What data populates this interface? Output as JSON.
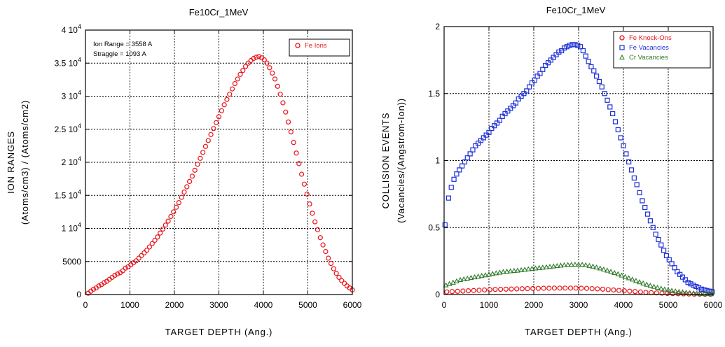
{
  "chart_data": [
    {
      "type": "scatter",
      "title": "Fe10Cr_1MeV",
      "xlabel": "TARGET DEPTH (Ang.)",
      "ylabel": [
        "ION RANGES",
        "(Atoms/cm3) / (Atoms/cm2)"
      ],
      "xlim": [
        0,
        6000
      ],
      "ylim": [
        0,
        40000
      ],
      "x_ticks": [
        0,
        1000,
        2000,
        3000,
        4000,
        5000,
        6000
      ],
      "y_ticks": [
        0,
        5000,
        10000,
        15000,
        20000,
        25000,
        30000,
        35000,
        40000
      ],
      "y_tick_labels": [
        {
          "base": "0",
          "exp": ""
        },
        {
          "base": "5000",
          "exp": ""
        },
        {
          "base": "1 10",
          "exp": "4"
        },
        {
          "base": "1.5 10",
          "exp": "4"
        },
        {
          "base": "2 10",
          "exp": "4"
        },
        {
          "base": "2.5 10",
          "exp": "4"
        },
        {
          "base": "3 10",
          "exp": "4"
        },
        {
          "base": "3.5 10",
          "exp": "4"
        },
        {
          "base": "4 10",
          "exp": "4"
        }
      ],
      "grid": true,
      "annotations": [
        "Ion Range = 3558 A",
        "Straggle = 1093 A"
      ],
      "legend_position": "top-right",
      "series": [
        {
          "name": "Fe Ions",
          "color": "#e8141b",
          "marker": "circle",
          "x": [
            60,
            120,
            180,
            240,
            300,
            360,
            420,
            480,
            540,
            600,
            660,
            720,
            780,
            840,
            900,
            960,
            1020,
            1080,
            1140,
            1200,
            1260,
            1320,
            1380,
            1440,
            1500,
            1560,
            1620,
            1680,
            1740,
            1800,
            1860,
            1920,
            1980,
            2040,
            2100,
            2160,
            2220,
            2280,
            2340,
            2400,
            2460,
            2520,
            2580,
            2640,
            2700,
            2760,
            2820,
            2880,
            2940,
            3000,
            3060,
            3120,
            3180,
            3240,
            3300,
            3360,
            3420,
            3480,
            3540,
            3600,
            3660,
            3720,
            3780,
            3840,
            3900,
            3960,
            4020,
            4080,
            4140,
            4200,
            4260,
            4320,
            4380,
            4440,
            4500,
            4560,
            4620,
            4680,
            4740,
            4800,
            4860,
            4920,
            4980,
            5040,
            5100,
            5160,
            5220,
            5280,
            5340,
            5400,
            5460,
            5520,
            5580,
            5640,
            5700,
            5760,
            5820,
            5880,
            5940,
            6000
          ],
          "y": [
            200,
            500,
            800,
            1000,
            1300,
            1500,
            1800,
            2000,
            2300,
            2600,
            2900,
            3100,
            3300,
            3600,
            4000,
            4200,
            4500,
            4800,
            5100,
            5500,
            5900,
            6300,
            6700,
            7200,
            7700,
            8200,
            8700,
            9300,
            9900,
            10500,
            11100,
            11800,
            12500,
            13200,
            13900,
            14700,
            15500,
            16300,
            17100,
            17900,
            18800,
            19700,
            20600,
            21500,
            22400,
            23300,
            24200,
            25100,
            26000,
            26900,
            27800,
            28700,
            29500,
            30300,
            31100,
            31900,
            32600,
            33300,
            33900,
            34500,
            35000,
            35400,
            35700,
            35900,
            36000,
            35800,
            35500,
            35000,
            34300,
            33500,
            32600,
            31500,
            30300,
            29000,
            27600,
            26100,
            24600,
            23000,
            21400,
            19800,
            18200,
            16700,
            15200,
            13700,
            12300,
            11000,
            9800,
            8600,
            7500,
            6500,
            5500,
            4700,
            3900,
            3200,
            2600,
            2100,
            1700,
            1300,
            1000,
            700
          ]
        }
      ]
    },
    {
      "type": "scatter",
      "title": "Fe10Cr_1MeV",
      "xlabel": "TARGET DEPTH (Ang.)",
      "ylabel": [
        "COLLISION EVENTS",
        "(Vacancies/(Angstrom-Ion))"
      ],
      "xlim": [
        0,
        6000
      ],
      "ylim": [
        0,
        2
      ],
      "x_ticks": [
        0,
        1000,
        2000,
        3000,
        4000,
        5000,
        6000
      ],
      "y_ticks": [
        0,
        0.5,
        1,
        1.5,
        2
      ],
      "y_tick_labels": [
        {
          "base": "0",
          "exp": ""
        },
        {
          "base": "0.5",
          "exp": ""
        },
        {
          "base": "1",
          "exp": ""
        },
        {
          "base": "1.5",
          "exp": ""
        },
        {
          "base": "2",
          "exp": ""
        }
      ],
      "grid": true,
      "legend_position": "top-right",
      "series": [
        {
          "name": "Fe Knock-Ons",
          "color": "#e8141b",
          "marker": "circle",
          "x": [
            60,
            180,
            300,
            420,
            540,
            660,
            780,
            900,
            1020,
            1140,
            1260,
            1380,
            1500,
            1620,
            1740,
            1860,
            1980,
            2100,
            2220,
            2340,
            2460,
            2580,
            2700,
            2820,
            2940,
            3060,
            3180,
            3300,
            3420,
            3540,
            3660,
            3780,
            3900,
            4020,
            4140,
            4260,
            4380,
            4500,
            4620,
            4740,
            4860,
            4980,
            5100,
            5220,
            5340,
            5460,
            5580,
            5700,
            5820,
            5940
          ],
          "y": [
            0.02,
            0.022,
            0.024,
            0.026,
            0.028,
            0.03,
            0.032,
            0.034,
            0.036,
            0.038,
            0.039,
            0.04,
            0.041,
            0.042,
            0.043,
            0.044,
            0.045,
            0.046,
            0.047,
            0.047,
            0.048,
            0.048,
            0.048,
            0.048,
            0.048,
            0.047,
            0.046,
            0.044,
            0.042,
            0.04,
            0.037,
            0.034,
            0.031,
            0.028,
            0.025,
            0.022,
            0.019,
            0.016,
            0.014,
            0.012,
            0.01,
            0.008,
            0.007,
            0.006,
            0.005,
            0.004,
            0.003,
            0.003,
            0.002,
            0.002
          ]
        },
        {
          "name": "Fe Vacancies",
          "color": "#1c2fd6",
          "marker": "square",
          "x": [
            20,
            100,
            160,
            220,
            280,
            340,
            400,
            460,
            520,
            580,
            640,
            700,
            760,
            820,
            880,
            940,
            1000,
            1060,
            1120,
            1180,
            1240,
            1300,
            1360,
            1420,
            1480,
            1540,
            1600,
            1660,
            1720,
            1780,
            1840,
            1900,
            1960,
            2020,
            2080,
            2140,
            2200,
            2260,
            2320,
            2380,
            2440,
            2500,
            2560,
            2620,
            2680,
            2740,
            2800,
            2860,
            2920,
            2980,
            3040,
            3100,
            3160,
            3220,
            3280,
            3340,
            3400,
            3460,
            3520,
            3580,
            3640,
            3700,
            3760,
            3820,
            3880,
            3940,
            4000,
            4060,
            4120,
            4180,
            4240,
            4300,
            4360,
            4420,
            4480,
            4540,
            4600,
            4660,
            4720,
            4780,
            4840,
            4900,
            4960,
            5020,
            5080,
            5140,
            5200,
            5260,
            5320,
            5380,
            5440,
            5500,
            5560,
            5620,
            5680,
            5740,
            5800,
            5860,
            5920,
            5980
          ],
          "y": [
            0.52,
            0.72,
            0.8,
            0.86,
            0.9,
            0.93,
            0.96,
            0.99,
            1.02,
            1.05,
            1.08,
            1.11,
            1.13,
            1.15,
            1.17,
            1.19,
            1.21,
            1.24,
            1.26,
            1.28,
            1.3,
            1.33,
            1.35,
            1.37,
            1.39,
            1.41,
            1.43,
            1.46,
            1.48,
            1.5,
            1.52,
            1.55,
            1.58,
            1.6,
            1.63,
            1.65,
            1.68,
            1.71,
            1.73,
            1.75,
            1.77,
            1.79,
            1.81,
            1.82,
            1.84,
            1.85,
            1.86,
            1.865,
            1.865,
            1.86,
            1.85,
            1.82,
            1.78,
            1.74,
            1.7,
            1.67,
            1.63,
            1.59,
            1.55,
            1.5,
            1.45,
            1.4,
            1.35,
            1.29,
            1.23,
            1.17,
            1.11,
            1.05,
            0.99,
            0.93,
            0.87,
            0.82,
            0.76,
            0.7,
            0.65,
            0.6,
            0.55,
            0.5,
            0.45,
            0.41,
            0.37,
            0.33,
            0.29,
            0.26,
            0.23,
            0.2,
            0.17,
            0.15,
            0.13,
            0.11,
            0.09,
            0.08,
            0.07,
            0.06,
            0.05,
            0.04,
            0.035,
            0.03,
            0.025,
            0.02
          ]
        },
        {
          "name": "Cr Vacancies",
          "color": "#2f7a2a",
          "marker": "triangle",
          "x": [
            40,
            120,
            200,
            280,
            360,
            440,
            520,
            600,
            680,
            760,
            840,
            920,
            1000,
            1080,
            1160,
            1240,
            1320,
            1400,
            1480,
            1560,
            1640,
            1720,
            1800,
            1880,
            1960,
            2040,
            2120,
            2200,
            2280,
            2360,
            2440,
            2520,
            2600,
            2680,
            2760,
            2840,
            2920,
            3000,
            3080,
            3160,
            3240,
            3320,
            3400,
            3480,
            3560,
            3640,
            3720,
            3800,
            3880,
            3960,
            4040,
            4120,
            4200,
            4280,
            4360,
            4440,
            4520,
            4600,
            4680,
            4760,
            4840,
            4920,
            5000,
            5080,
            5160,
            5240,
            5320,
            5400,
            5480,
            5560,
            5640,
            5720,
            5800,
            5880,
            5960
          ],
          "y": [
            0.07,
            0.08,
            0.09,
            0.1,
            0.11,
            0.115,
            0.12,
            0.125,
            0.13,
            0.135,
            0.14,
            0.145,
            0.15,
            0.155,
            0.16,
            0.165,
            0.17,
            0.172,
            0.175,
            0.178,
            0.18,
            0.183,
            0.186,
            0.19,
            0.193,
            0.196,
            0.199,
            0.202,
            0.205,
            0.208,
            0.211,
            0.214,
            0.217,
            0.22,
            0.222,
            0.223,
            0.224,
            0.224,
            0.223,
            0.22,
            0.215,
            0.21,
            0.203,
            0.196,
            0.188,
            0.18,
            0.171,
            0.162,
            0.153,
            0.143,
            0.133,
            0.123,
            0.113,
            0.103,
            0.093,
            0.084,
            0.075,
            0.067,
            0.059,
            0.052,
            0.045,
            0.039,
            0.034,
            0.029,
            0.025,
            0.021,
            0.018,
            0.015,
            0.012,
            0.01,
            0.008,
            0.007,
            0.006,
            0.005,
            0.004
          ]
        }
      ]
    }
  ]
}
